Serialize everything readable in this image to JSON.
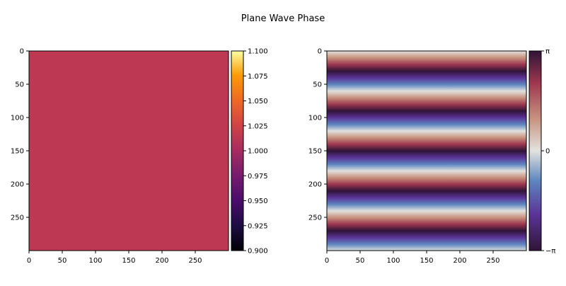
{
  "chart_data": {
    "type": "heatmap",
    "title": "Plane Wave Phase",
    "panels": [
      {
        "name": "amplitude",
        "image_size": [
          300,
          300
        ],
        "x_ticks": [
          0,
          50,
          100,
          150,
          200,
          250
        ],
        "y_ticks": [
          0,
          50,
          100,
          150,
          200,
          250
        ],
        "values": "constant",
        "constant_value": 1.0,
        "display_color": "#bd3853",
        "colorbar": {
          "colormap": "inferno",
          "vmin": 0.9,
          "vmax": 1.1,
          "tick_values": [
            0.9,
            0.925,
            0.95,
            0.975,
            1.0,
            1.025,
            1.05,
            1.075,
            1.1
          ],
          "tick_labels": [
            "0.900",
            "0.925",
            "0.950",
            "0.975",
            "1.000",
            "1.025",
            "1.050",
            "1.075",
            "1.100"
          ]
        }
      },
      {
        "name": "phase",
        "image_size": [
          300,
          300
        ],
        "x_ticks": [
          0,
          50,
          100,
          150,
          200,
          250
        ],
        "y_ticks": [
          0,
          50,
          100,
          150,
          200,
          250
        ],
        "values": "wrapped phase varying along y only",
        "phase_start": 0,
        "phase_period_rows": 60,
        "colorbar": {
          "colormap": "twilight_shifted",
          "vmin": -3.14159,
          "vmax": 3.14159,
          "tick_values": [
            -3.14159,
            0,
            3.14159
          ],
          "tick_labels": [
            "−π",
            "0",
            "π"
          ]
        }
      }
    ]
  }
}
